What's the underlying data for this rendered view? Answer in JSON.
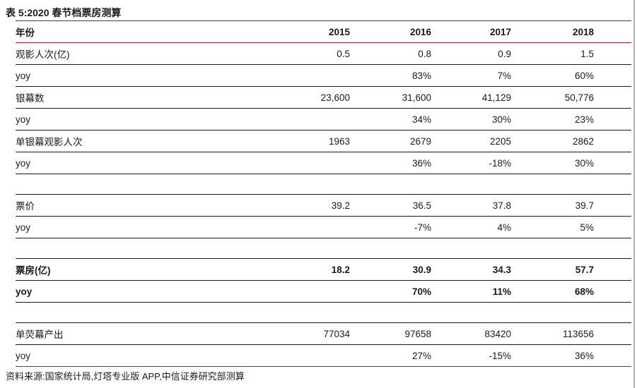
{
  "title": "表 5:2020 春节档票房测算",
  "source": "资料来源:国家统计局,灯塔专业版 APP,中信证券研究部测算",
  "colors": {
    "accent_red": "#8e1f27",
    "line_black": "#1a1a1a",
    "text": "#1a1a1a",
    "page_edge_gray": "#b4b4b4"
  },
  "table": {
    "header": {
      "label": "年份",
      "years": [
        "2015",
        "2016",
        "2017",
        "2018"
      ]
    },
    "rows": [
      {
        "type": "data",
        "label": "观影人次(亿)",
        "indent": 0,
        "bold": false,
        "values": [
          "0.5",
          "0.8",
          "0.9",
          "1.5"
        ]
      },
      {
        "type": "data",
        "label": "yoy",
        "indent": 0,
        "bold": false,
        "values": [
          "",
          "83%",
          "7%",
          "60%"
        ]
      },
      {
        "type": "data",
        "label": "银幕数",
        "indent": 1,
        "bold": false,
        "values": [
          "23,600",
          "31,600",
          "41,129",
          "50,776"
        ]
      },
      {
        "type": "data",
        "label": "yoy",
        "indent": 2,
        "bold": false,
        "values": [
          "",
          "34%",
          "30%",
          "23%"
        ]
      },
      {
        "type": "data",
        "label": "单银幕观影人次",
        "indent": 1,
        "bold": false,
        "values": [
          "1963",
          "2679",
          "2205",
          "2862"
        ]
      },
      {
        "type": "data",
        "label": "yoy",
        "indent": 2,
        "bold": false,
        "values": [
          "",
          "36%",
          "-18%",
          "30%"
        ]
      },
      {
        "type": "spacer"
      },
      {
        "type": "data",
        "label": "票价",
        "indent": 0,
        "bold": false,
        "values": [
          "39.2",
          "36.5",
          "37.8",
          "39.7"
        ]
      },
      {
        "type": "data",
        "label": "yoy",
        "indent": 0,
        "bold": false,
        "values": [
          "",
          "-7%",
          "4%",
          "5%"
        ]
      },
      {
        "type": "spacer"
      },
      {
        "type": "data",
        "label": "票房(亿)",
        "indent": 0,
        "bold": true,
        "values": [
          "18.2",
          "30.9",
          "34.3",
          "57.7"
        ]
      },
      {
        "type": "data",
        "label": "yoy",
        "indent": 0,
        "bold": true,
        "values": [
          "",
          "70%",
          "11%",
          "68%"
        ]
      },
      {
        "type": "spacer"
      },
      {
        "type": "data",
        "label": "单荧幕产出",
        "indent": 0,
        "bold": false,
        "values": [
          "77034",
          "97658",
          "83420",
          "113656"
        ]
      },
      {
        "type": "data",
        "label": "yoy",
        "indent": 0,
        "bold": false,
        "values": [
          "",
          "27%",
          "-15%",
          "36%"
        ],
        "last": true
      }
    ]
  }
}
